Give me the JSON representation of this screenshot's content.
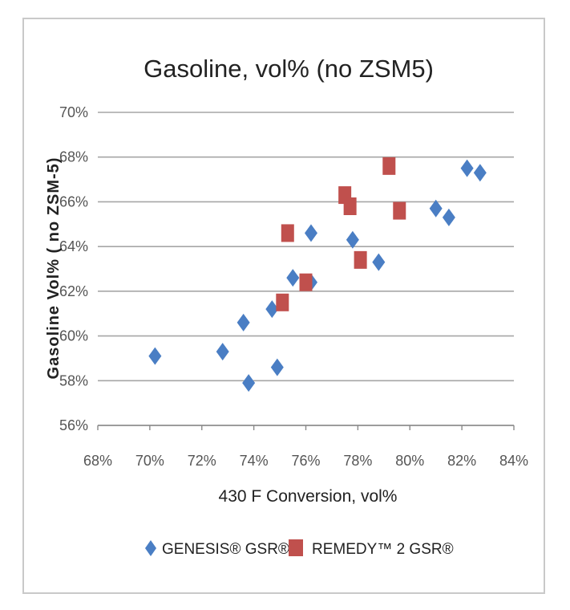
{
  "chart_data": {
    "type": "scatter",
    "title": "Gasoline, vol% (no ZSM5)",
    "xlabel": "430 F Conversion, vol%",
    "ylabel": "Gasoline Vol% ( no ZSM-5)",
    "xlim": [
      68,
      84
    ],
    "ylim": [
      56,
      70
    ],
    "x_ticks": [
      "68%",
      "70%",
      "72%",
      "74%",
      "76%",
      "78%",
      "80%",
      "82%",
      "84%"
    ],
    "y_ticks": [
      "56%",
      "58%",
      "60%",
      "62%",
      "64%",
      "66%",
      "68%",
      "70%"
    ],
    "grid": "horizontal",
    "legend_position": "bottom",
    "series": [
      {
        "name": "GENESIS® GSR®",
        "marker": "diamond",
        "color": "#4a7ec4",
        "points": [
          [
            70.2,
            59.1
          ],
          [
            72.8,
            59.3
          ],
          [
            73.6,
            60.6
          ],
          [
            73.8,
            57.9
          ],
          [
            74.7,
            61.2
          ],
          [
            74.9,
            58.6
          ],
          [
            75.5,
            62.6
          ],
          [
            76.2,
            62.4
          ],
          [
            76.2,
            64.6
          ],
          [
            77.8,
            64.3
          ],
          [
            78.8,
            63.3
          ],
          [
            81.0,
            65.7
          ],
          [
            81.5,
            65.3
          ],
          [
            82.2,
            67.5
          ],
          [
            82.7,
            67.3
          ]
        ]
      },
      {
        "name": "REMEDY™ 2 GSR®",
        "marker": "square",
        "color": "#c0504d",
        "points": [
          [
            75.1,
            61.5
          ],
          [
            75.3,
            64.6
          ],
          [
            76.0,
            62.4
          ],
          [
            77.5,
            66.3
          ],
          [
            77.7,
            65.8
          ],
          [
            78.1,
            63.4
          ],
          [
            79.2,
            67.6
          ],
          [
            79.6,
            65.6
          ]
        ]
      }
    ]
  }
}
